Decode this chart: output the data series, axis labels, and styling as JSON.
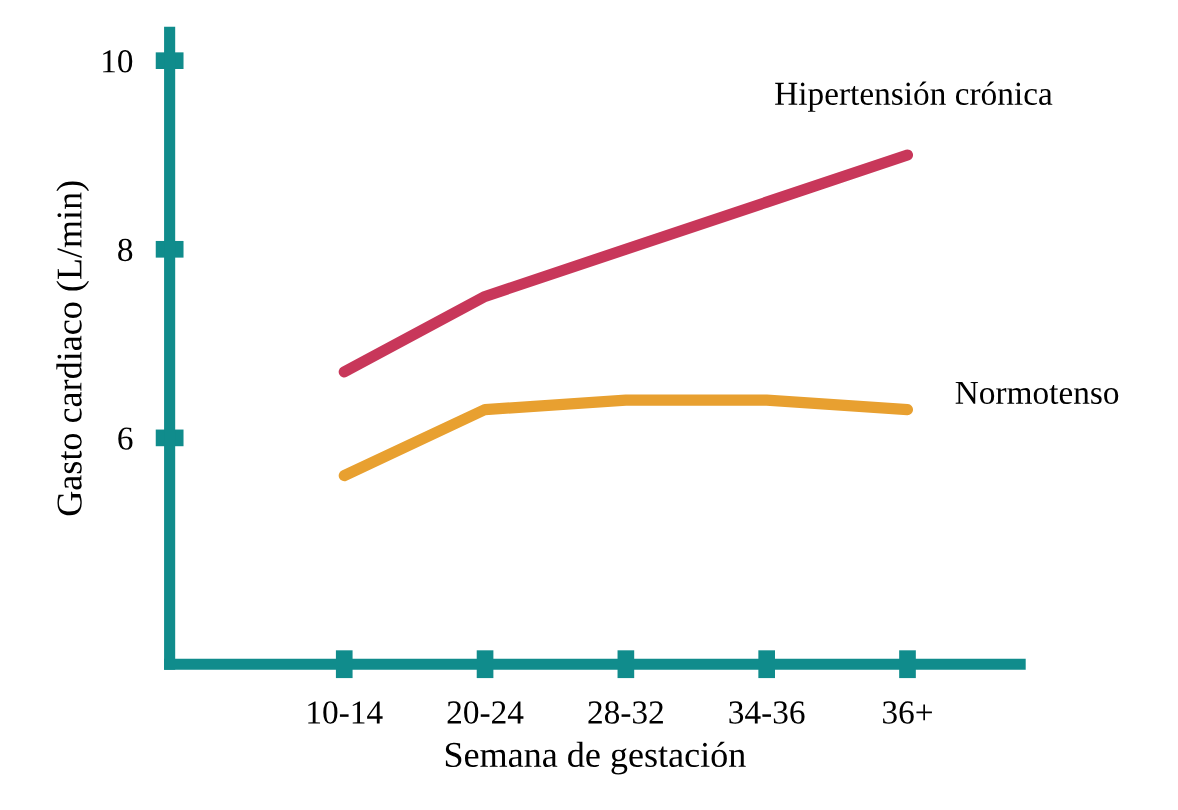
{
  "chart_data": {
    "type": "line",
    "xlabel": "Semana de gestación",
    "ylabel": "Gasto cardiaco (L/min)",
    "categories": [
      "10-14",
      "20-24",
      "28-32",
      "34-36",
      "36+"
    ],
    "series": [
      {
        "name": "Hipertensión crónica",
        "color": "#c8375a",
        "values": [
          6.7,
          7.5,
          8.0,
          8.5,
          9.0
        ]
      },
      {
        "name": "Normotenso",
        "color": "#e8a030",
        "values": [
          5.6,
          6.3,
          6.4,
          6.4,
          6.3
        ]
      }
    ],
    "ylim": [
      3.6,
      10.3
    ],
    "yticks": [
      6,
      8,
      10
    ],
    "grid": false,
    "legend": false,
    "marker": "none",
    "line_style": "solid"
  }
}
